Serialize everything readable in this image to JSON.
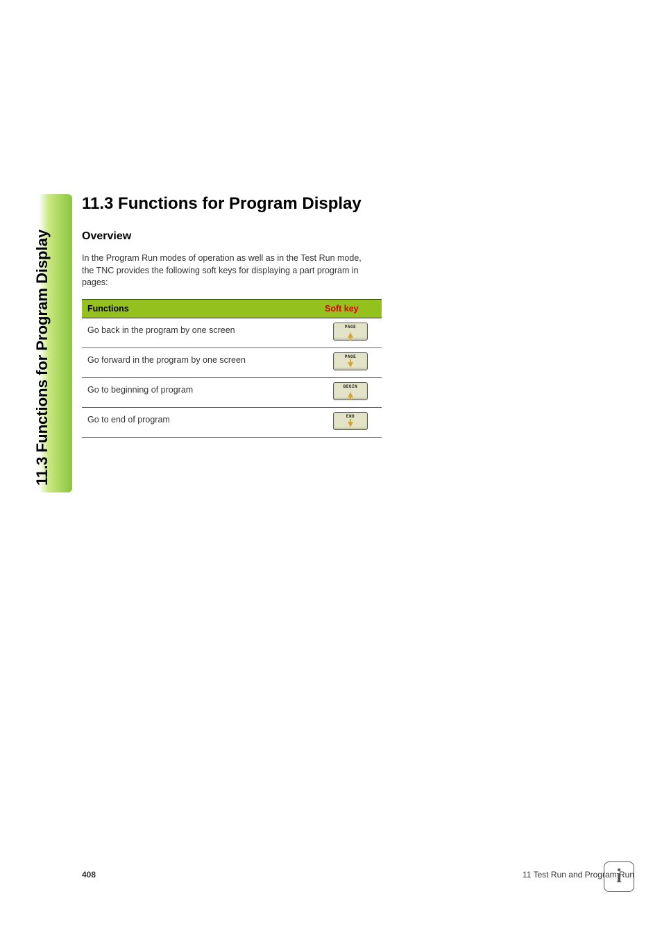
{
  "sideTab": "11.3 Functions for Program Display",
  "heading": "11.3 Functions for Program Display",
  "subheading": "Overview",
  "intro": "In the Program Run modes of operation as well as in the Test Run mode, the TNC provides the following soft keys for displaying a part program in pages:",
  "table": {
    "header": {
      "col1": "Functions",
      "col2": "Soft key"
    },
    "rows": [
      {
        "desc": "Go back in the program by one screen",
        "keyLabel": "PAGE",
        "arrow": "up"
      },
      {
        "desc": "Go forward in the program by one screen",
        "keyLabel": "PAGE",
        "arrow": "down"
      },
      {
        "desc": "Go to beginning of program",
        "keyLabel": "BEGIN",
        "arrow": "up"
      },
      {
        "desc": "Go to end of program",
        "keyLabel": "END",
        "arrow": "down"
      }
    ],
    "colors": {
      "headerBg": "#95c11f",
      "headerText": "#000000",
      "softkeyHeaderText": "#d40000",
      "rowBorder": "#666666",
      "keyBg": "#e3e3c8",
      "keyBorder": "#555555",
      "arrow": "#d4a53a"
    }
  },
  "footer": {
    "pageNumber": "408",
    "chapter": "11 Test Run and Program Run"
  },
  "infoGlyph": "i"
}
